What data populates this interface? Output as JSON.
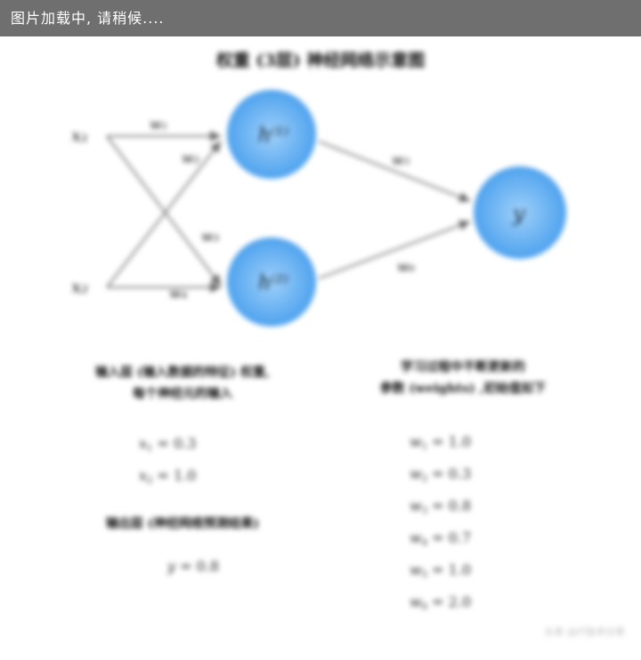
{
  "loading_text": "图片加载中, 请稍候....",
  "title": "权重 (3层) 神经网络示意图",
  "inputs": [
    "x₁",
    "x₂"
  ],
  "edges": {
    "in": [
      "w₁",
      "w₂",
      "w₃",
      "w₄"
    ],
    "out": [
      "w₅",
      "w₆"
    ]
  },
  "hidden_nodes": [
    "h⁽¹⁾",
    "h⁽²⁾"
  ],
  "output_node": "y",
  "caption_left": [
    "输入层 (输入数据的特征) 权重,",
    "每个神经元的输入"
  ],
  "caption_left2": "输出层 (神经网络预测结果)",
  "caption_right": [
    "学习过程中不断更新的",
    "参数 (weights) ,初始值如下"
  ],
  "inputs_values": [
    {
      "name": "x",
      "sub": "1",
      "op": "=",
      "value": "0.3"
    },
    {
      "name": "x",
      "sub": "2",
      "op": "=",
      "value": "1.0"
    }
  ],
  "output_value": {
    "name": "y",
    "op": "=",
    "value": "0.8"
  },
  "weights_values": [
    {
      "name": "w",
      "sub": "1",
      "op": "=",
      "value": "1.0"
    },
    {
      "name": "w",
      "sub": "2",
      "op": "=",
      "value": "0.3"
    },
    {
      "name": "w",
      "sub": "3",
      "op": "=",
      "value": "0.8"
    },
    {
      "name": "w",
      "sub": "4",
      "op": "=",
      "value": "0.7"
    },
    {
      "name": "w",
      "sub": "5",
      "op": "=",
      "value": "1.0"
    },
    {
      "name": "w",
      "sub": "6",
      "op": "=",
      "value": "2.0"
    }
  ],
  "watermark": "头条 @IT技术分享",
  "colors": {
    "node_fill": "#5aaaf0",
    "node_center": "#8ec8f8",
    "edge": "#777777",
    "loading_bg": "#6f6f6f"
  }
}
